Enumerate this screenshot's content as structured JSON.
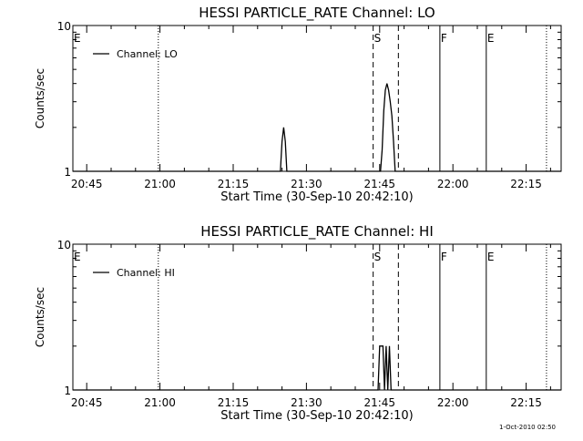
{
  "footer_timestamp": "1-Oct-2010 02:50",
  "chart_data": [
    {
      "type": "line",
      "title": "HESSI PARTICLE_RATE Channel: LO",
      "xlabel": "Start Time (30-Sep-10 20:42:10)",
      "ylabel": "Counts/sec",
      "yscale": "log",
      "xlim": [
        "20:42:10",
        "22:22:10"
      ],
      "ylim": [
        1,
        10
      ],
      "grid": false,
      "legend_position": "top-left",
      "x_tick_labels": [
        "20:45",
        "21:00",
        "21:15",
        "21:30",
        "21:45",
        "22:00",
        "22:15"
      ],
      "y_tick_labels": [
        "1",
        "10"
      ],
      "series": [
        {
          "name": "Channel: LO",
          "color": "#000000",
          "x": [
            "20:42:10",
            "21:24:40",
            "21:25:00",
            "21:25:20",
            "21:25:40",
            "21:26:00",
            "21:45:10",
            "21:45:30",
            "21:45:50",
            "21:46:10",
            "21:46:30",
            "21:46:50",
            "21:47:10",
            "21:47:30",
            "21:47:50",
            "21:48:10",
            "22:22:10"
          ],
          "values": [
            1,
            1,
            1.6,
            2.0,
            1.6,
            1,
            1,
            1.4,
            2.6,
            3.6,
            4.0,
            3.6,
            3.0,
            2.4,
            1.6,
            1,
            1
          ]
        }
      ],
      "annotations": [
        {
          "label": "E",
          "time": "20:42:10",
          "style": "none"
        },
        {
          "label": "",
          "time": "20:59:40",
          "style": "dotted"
        },
        {
          "label": "S",
          "time": "21:43:40",
          "style": "dashed"
        },
        {
          "label": "",
          "time": "21:48:50",
          "style": "dashed"
        },
        {
          "label": "F",
          "time": "21:57:20",
          "style": "solid"
        },
        {
          "label": "E",
          "time": "22:06:50",
          "style": "solid"
        },
        {
          "label": "",
          "time": "22:19:10",
          "style": "dotted"
        }
      ]
    },
    {
      "type": "line",
      "title": "HESSI PARTICLE_RATE Channel: HI",
      "xlabel": "Start Time (30-Sep-10 20:42:10)",
      "ylabel": "Counts/sec",
      "yscale": "log",
      "xlim": [
        "20:42:10",
        "22:22:10"
      ],
      "ylim": [
        1,
        10
      ],
      "grid": false,
      "legend_position": "top-left",
      "x_tick_labels": [
        "20:45",
        "21:00",
        "21:15",
        "21:30",
        "21:45",
        "22:00",
        "22:15"
      ],
      "y_tick_labels": [
        "1",
        "10"
      ],
      "series": [
        {
          "name": "Channel: HI",
          "color": "#000000",
          "x": [
            "20:42:10",
            "21:44:40",
            "21:45:00",
            "21:45:20",
            "21:45:40",
            "21:46:00",
            "21:46:20",
            "21:46:40",
            "21:47:00",
            "21:47:20",
            "22:22:10"
          ],
          "values": [
            1,
            1,
            2.0,
            2.0,
            2.0,
            1,
            2.0,
            1,
            2.0,
            1,
            1
          ]
        }
      ],
      "annotations": [
        {
          "label": "E",
          "time": "20:42:10",
          "style": "none"
        },
        {
          "label": "",
          "time": "20:59:40",
          "style": "dotted"
        },
        {
          "label": "S",
          "time": "21:43:40",
          "style": "dashed"
        },
        {
          "label": "",
          "time": "21:48:50",
          "style": "dashed"
        },
        {
          "label": "F",
          "time": "21:57:20",
          "style": "solid"
        },
        {
          "label": "E",
          "time": "22:06:50",
          "style": "solid"
        },
        {
          "label": "",
          "time": "22:19:10",
          "style": "dotted"
        }
      ]
    }
  ]
}
